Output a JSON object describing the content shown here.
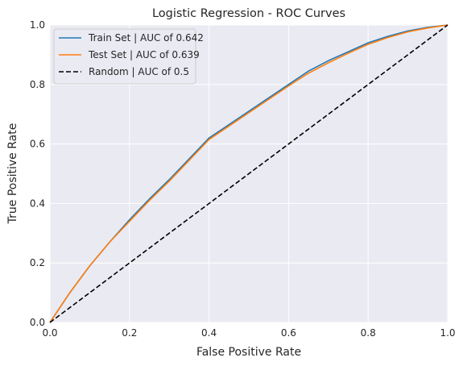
{
  "chart_data": {
    "type": "line",
    "title": "Logistic Regression - ROC Curves",
    "xlabel": "False Positive Rate",
    "ylabel": "True Positive Rate",
    "xlim": [
      0.0,
      1.0
    ],
    "ylim": [
      0.0,
      1.0
    ],
    "xticks": [
      "0.0",
      "0.2",
      "0.4",
      "0.6",
      "0.8",
      "1.0"
    ],
    "yticks": [
      "0.0",
      "0.2",
      "0.4",
      "0.6",
      "0.8",
      "1.0"
    ],
    "grid": true,
    "legend_position": "top-left",
    "series": [
      {
        "name": "Train Set | AUC of 0.642",
        "color": "#1f77b4",
        "style": "solid",
        "x": [
          0.0,
          0.02,
          0.05,
          0.1,
          0.15,
          0.2,
          0.25,
          0.3,
          0.35,
          0.4,
          0.45,
          0.5,
          0.55,
          0.6,
          0.65,
          0.7,
          0.75,
          0.8,
          0.85,
          0.9,
          0.95,
          1.0
        ],
        "y": [
          0.0,
          0.04,
          0.1,
          0.19,
          0.27,
          0.345,
          0.415,
          0.48,
          0.55,
          0.62,
          0.665,
          0.71,
          0.755,
          0.8,
          0.845,
          0.88,
          0.91,
          0.94,
          0.962,
          0.98,
          0.992,
          1.0
        ]
      },
      {
        "name": "Test Set | AUC of 0.639",
        "color": "#ff7f0e",
        "style": "solid",
        "x": [
          0.0,
          0.02,
          0.05,
          0.1,
          0.15,
          0.2,
          0.25,
          0.3,
          0.35,
          0.4,
          0.45,
          0.5,
          0.55,
          0.6,
          0.65,
          0.7,
          0.75,
          0.8,
          0.85,
          0.9,
          0.95,
          1.0
        ],
        "y": [
          0.0,
          0.04,
          0.1,
          0.19,
          0.27,
          0.34,
          0.41,
          0.475,
          0.545,
          0.615,
          0.66,
          0.705,
          0.75,
          0.795,
          0.838,
          0.873,
          0.905,
          0.935,
          0.958,
          0.977,
          0.99,
          1.0
        ]
      },
      {
        "name": "Random | AUC of 0.5",
        "color": "#000000",
        "style": "dashed",
        "x": [
          0.0,
          1.0
        ],
        "y": [
          0.0,
          1.0
        ]
      }
    ]
  }
}
